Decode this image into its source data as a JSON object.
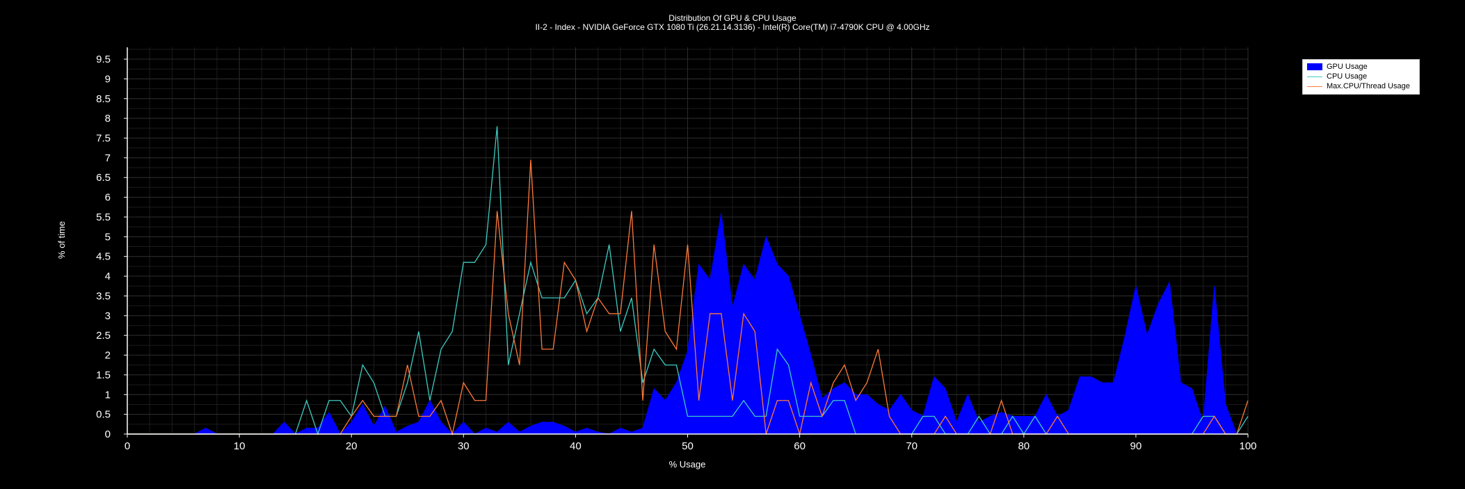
{
  "chart_data": {
    "type": "area",
    "title": "Distribution Of GPU & CPU Usage",
    "subtitle": "II-2 - Index - NVIDIA GeForce GTX 1080 Ti (26.21.14.3136) - Intel(R) Core(TM) i7-4790K CPU @ 4.00GHz",
    "xlabel": "% Usage",
    "ylabel": "% of time",
    "xlim": [
      0,
      100
    ],
    "ylim": [
      0,
      9.8
    ],
    "xticks": [
      "0",
      "10",
      "20",
      "30",
      "40",
      "50",
      "60",
      "70",
      "80",
      "90",
      "100"
    ],
    "yticks": [
      "0",
      "0.5",
      "1",
      "1.5",
      "2",
      "2.5",
      "3",
      "3.5",
      "4",
      "4.5",
      "5",
      "5.5",
      "6",
      "6.5",
      "7",
      "7.5",
      "8",
      "8.5",
      "9",
      "9.5"
    ],
    "grid": true,
    "legend_position": "top-right",
    "series": [
      {
        "name": "GPU Usage",
        "style": "area",
        "color": "#0000ff",
        "x": [
          0,
          1,
          2,
          3,
          4,
          5,
          6,
          7,
          8,
          9,
          10,
          11,
          12,
          13,
          14,
          15,
          16,
          17,
          18,
          19,
          20,
          21,
          22,
          23,
          24,
          25,
          26,
          27,
          28,
          29,
          30,
          31,
          32,
          33,
          34,
          35,
          36,
          37,
          38,
          39,
          40,
          41,
          42,
          43,
          44,
          45,
          46,
          47,
          48,
          49,
          50,
          51,
          52,
          53,
          54,
          55,
          56,
          57,
          58,
          59,
          60,
          61,
          62,
          63,
          64,
          65,
          66,
          67,
          68,
          69,
          70,
          71,
          72,
          73,
          74,
          75,
          76,
          77,
          78,
          79,
          80,
          81,
          82,
          83,
          84,
          85,
          86,
          87,
          88,
          89,
          90,
          91,
          92,
          93,
          94,
          95,
          96,
          97,
          98,
          99,
          100
        ],
        "values": [
          0,
          0,
          0,
          0,
          0,
          0,
          0,
          0.15,
          0,
          0,
          0,
          0,
          0,
          0,
          0.3,
          0,
          0.15,
          0.15,
          0.55,
          0,
          0.3,
          0.75,
          0.2,
          0.7,
          0.05,
          0.2,
          0.3,
          0.85,
          0.3,
          0,
          0.3,
          0,
          0.15,
          0.05,
          0.3,
          0.05,
          0.2,
          0.3,
          0.3,
          0.2,
          0.05,
          0.15,
          0.05,
          0,
          0.15,
          0.05,
          0.15,
          1.15,
          0.85,
          1.3,
          2.1,
          4.3,
          3.9,
          5.6,
          3.2,
          4.3,
          3.9,
          5.0,
          4.3,
          4.0,
          3.0,
          2.0,
          0.9,
          1.15,
          1.3,
          1.0,
          1.0,
          0.75,
          0.6,
          1.0,
          0.6,
          0.45,
          1.45,
          1.15,
          0.3,
          1.0,
          0.3,
          0.45,
          0.55,
          0.45,
          0.45,
          0.45,
          1.0,
          0.45,
          0.6,
          1.45,
          1.45,
          1.3,
          1.3,
          2.45,
          3.75,
          2.5,
          3.3,
          3.85,
          1.3,
          1.15,
          0.3,
          3.75,
          0.75,
          0,
          0
        ]
      },
      {
        "name": "CPU Usage",
        "style": "line",
        "color": "#3ecdc4",
        "x": [
          0,
          1,
          2,
          3,
          4,
          5,
          6,
          7,
          8,
          9,
          10,
          11,
          12,
          13,
          14,
          15,
          16,
          17,
          18,
          19,
          20,
          21,
          22,
          23,
          24,
          25,
          26,
          27,
          28,
          29,
          30,
          31,
          32,
          33,
          34,
          35,
          36,
          37,
          38,
          39,
          40,
          41,
          42,
          43,
          44,
          45,
          46,
          47,
          48,
          49,
          50,
          51,
          52,
          53,
          54,
          55,
          56,
          57,
          58,
          59,
          60,
          61,
          62,
          63,
          64,
          65,
          66,
          67,
          68,
          69,
          70,
          71,
          72,
          73,
          74,
          75,
          76,
          77,
          78,
          79,
          80,
          81,
          82,
          83,
          84,
          85,
          86,
          87,
          88,
          89,
          90,
          91,
          92,
          93,
          94,
          95,
          96,
          97,
          98,
          99,
          100
        ],
        "values": [
          0,
          0,
          0,
          0,
          0,
          0,
          0,
          0,
          0,
          0,
          0,
          0,
          0,
          0,
          0,
          0,
          0.85,
          0,
          0.85,
          0.85,
          0.45,
          1.75,
          1.3,
          0.45,
          0.45,
          1.3,
          2.6,
          0.85,
          2.15,
          2.6,
          4.35,
          4.35,
          4.8,
          7.8,
          1.75,
          3.05,
          4.35,
          3.45,
          3.45,
          3.45,
          3.9,
          3.05,
          3.45,
          4.8,
          2.6,
          3.45,
          1.3,
          2.15,
          1.75,
          1.75,
          0.45,
          0.45,
          0.45,
          0.45,
          0.45,
          0.85,
          0.45,
          0.45,
          2.15,
          1.75,
          0.45,
          0.45,
          0.45,
          0.85,
          0.85,
          0,
          0,
          0,
          0,
          0,
          0,
          0.45,
          0.45,
          0,
          0,
          0,
          0.45,
          0,
          0,
          0.45,
          0,
          0.45,
          0,
          0,
          0,
          0,
          0,
          0,
          0,
          0,
          0,
          0,
          0,
          0,
          0,
          0,
          0.45,
          0.45,
          0,
          0,
          0.45
        ]
      },
      {
        "name": "Max.CPU/Thread Usage",
        "style": "line",
        "color": "#ff7a3a",
        "x": [
          0,
          1,
          2,
          3,
          4,
          5,
          6,
          7,
          8,
          9,
          10,
          11,
          12,
          13,
          14,
          15,
          16,
          17,
          18,
          19,
          20,
          21,
          22,
          23,
          24,
          25,
          26,
          27,
          28,
          29,
          30,
          31,
          32,
          33,
          34,
          35,
          36,
          37,
          38,
          39,
          40,
          41,
          42,
          43,
          44,
          45,
          46,
          47,
          48,
          49,
          50,
          51,
          52,
          53,
          54,
          55,
          56,
          57,
          58,
          59,
          60,
          61,
          62,
          63,
          64,
          65,
          66,
          67,
          68,
          69,
          70,
          71,
          72,
          73,
          74,
          75,
          76,
          77,
          78,
          79,
          80,
          81,
          82,
          83,
          84,
          85,
          86,
          87,
          88,
          89,
          90,
          91,
          92,
          93,
          94,
          95,
          96,
          97,
          98,
          99,
          100
        ],
        "values": [
          0,
          0,
          0,
          0,
          0,
          0,
          0,
          0,
          0,
          0,
          0,
          0,
          0,
          0,
          0,
          0,
          0,
          0,
          0,
          0,
          0.45,
          0.85,
          0.45,
          0.45,
          0.45,
          1.75,
          0.45,
          0.45,
          0.85,
          0,
          1.3,
          0.85,
          0.85,
          5.65,
          3.05,
          1.75,
          6.95,
          2.15,
          2.15,
          4.35,
          3.9,
          2.6,
          3.45,
          3.05,
          3.05,
          5.65,
          0.85,
          4.8,
          2.6,
          2.15,
          4.8,
          0.85,
          3.05,
          3.05,
          0.85,
          3.05,
          2.6,
          0,
          0.85,
          0.85,
          0,
          1.3,
          0.45,
          1.3,
          1.75,
          0.85,
          1.3,
          2.15,
          0.45,
          0,
          0,
          0,
          0,
          0.45,
          0,
          0,
          0,
          0,
          0.85,
          0,
          0,
          0,
          0,
          0.45,
          0,
          0,
          0,
          0,
          0,
          0,
          0,
          0,
          0,
          0,
          0,
          0,
          0,
          0.45,
          0,
          0,
          0.85
        ]
      }
    ]
  }
}
